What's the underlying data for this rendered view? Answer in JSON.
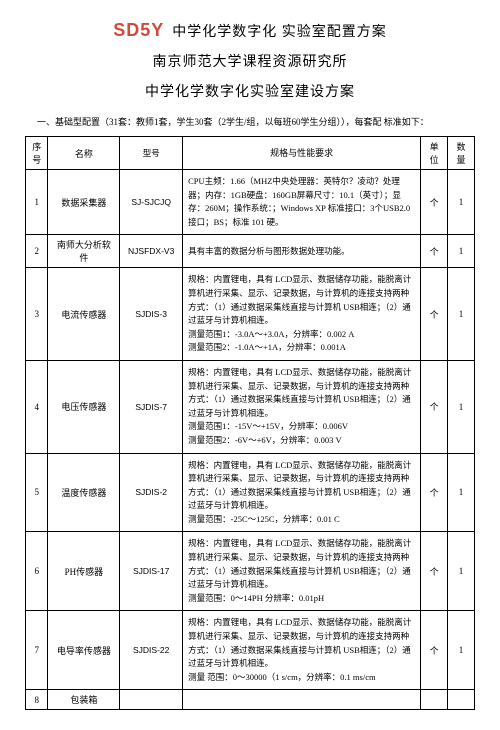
{
  "watermark": "SD5Y",
  "title_main": "中学化学数字化 实验室配置方案",
  "title_sub1": "南京师范大学课程资源研究所",
  "title_sub2": "中学化学数字化实验室建设方案",
  "intro": "一、基础型配置（31套：教师1套，学生30套（2学生/组，以每班60学生分组）），每套配 标准如下：",
  "columns": {
    "seq": "序 号",
    "name": "名称",
    "model": "型号",
    "spec": "规格与性能要求",
    "unit": "单位",
    "qty": "数量"
  },
  "rows": [
    {
      "seq": "1",
      "name": "数据采集器",
      "model": "SJ-SJCJQ",
      "spec": "CPU主频：1.66（MHZ中央处理器：英特尔？凌动？处理器；内存：1GB硬盘：160GB屏幕尺寸：10.1（英寸）；显存：260M；操作系统：；Windows XP 标准接口：3个USB2.0 接口；BS；标准 101 硬。",
      "unit": "个",
      "qty": "1"
    },
    {
      "seq": "2",
      "name": "南师大分析软件",
      "model": "NJSFDX-V3",
      "spec": "具有丰富的数据分析与图形数据处理功能。",
      "unit": "个",
      "qty": "1"
    },
    {
      "seq": "3",
      "name": "电流传感器",
      "model": "SJDIS-3",
      "spec": "规格：内置锂电，具有 LCD显示、数据储存功能，能脱离计算机进行采集、显示、记录数据，与计算机的连接支持两种方式：（1）通过数据采集线直接与计算机   USB相连；（2）通过蓝牙与计算机相连。\n测量范围1：-3.0A～+3.0A，分辨率：0.002 A\n测量范围2：-1.0A～+1A，分辨率：0.001A",
      "unit": "个",
      "qty": "1"
    },
    {
      "seq": "4",
      "name": "电压传感器",
      "model": "SJDIS-7",
      "spec": "规格：内置锂电，具有 LCD显示、数据储存功能，能脱离计算机进行采集、显示、记录数据，与计算机的连接支持两种方式：（1）通过数据采集线直接与计算机   USB相连；（2）通过蓝牙与计算机相连。\n测量范围1：-15V～+15V，分辨率：0.006V\n测量范围2：-6V～+6V，分辨率：0.003 V",
      "unit": "个",
      "qty": "1"
    },
    {
      "seq": "5",
      "name": "温度传感器",
      "model": "SJDIS-2",
      "spec": "规格：内置锂电，具有 LCD显示、数据储存功能，能脱离计算机进行采集、显示、记录数据，与计算机的连接支持两种方式：（1）通过数据采集线直接与计算机   USB相连；（2）通过蓝牙与计算机相连。\n测量范围：-25C～125C，分辨率：0.01 C",
      "unit": "个",
      "qty": "1"
    },
    {
      "seq": "6",
      "name": "PH传感器",
      "model": "SJDIS-17",
      "spec": "规格：内置锂电，具有 LCD显示、数据储存功能，能脱离计算机进行采集、显示、记录数据，与计算机的连接支持两种方式：（1）通过数据采集线直接与计算机   USB相连；（2）通过蓝牙与计算机相连。\n测量范围：0～14PH 分辨率：0.01pH",
      "unit": "个",
      "qty": "1"
    },
    {
      "seq": "7",
      "name": "电导率传感器",
      "model": "SJDIS-22",
      "spec": "规格：内置锂电，具有 LCD显示、数据储存功能，能脱离计算机进行采集、显示、记录数据，与计算机的连接支持两种方式：（1）通过数据采集线直接与计算机   USB相连；（2）通过蓝牙与计算机相连。\n测量 范围：0～30000（1 s/cm，分辨率：0.1 ms/cm",
      "unit": "个",
      "qty": "1"
    },
    {
      "seq": "8",
      "name": "包装箱",
      "model": "",
      "spec": "",
      "unit": "",
      "qty": ""
    }
  ]
}
